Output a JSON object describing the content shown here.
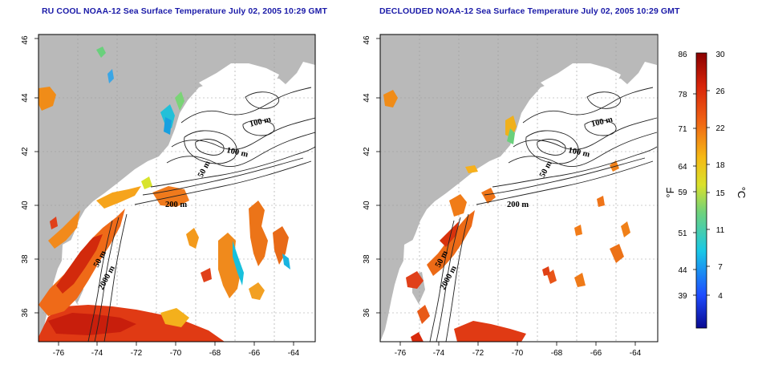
{
  "panels": [
    {
      "title": "RU COOL NOAA-12 Sea Surface Temperature July 02, 2005 10:29 GMT",
      "contour_labels": [
        "100 m",
        "100 m",
        "50 m",
        "200 m",
        "50 m",
        "2000 m"
      ]
    },
    {
      "title": "DECLOUDED NOAA-12 Sea Surface Temperature July 02, 2005 10:29 GMT",
      "contour_labels": [
        "100 m",
        "100 m",
        "50 m",
        "200 m",
        "50 m",
        "2000 m"
      ]
    }
  ],
  "x_ticks": [
    "-76",
    "-74",
    "-72",
    "-70",
    "-68",
    "-66",
    "-64"
  ],
  "y_ticks": [
    "36",
    "38",
    "40",
    "42",
    "44",
    "46"
  ],
  "colorbar": {
    "f_labels": [
      "86",
      "78",
      "71",
      "64",
      "59",
      "51",
      "44",
      "39"
    ],
    "c_labels": [
      "30",
      "26",
      "22",
      "18",
      "15",
      "11",
      "7",
      "4"
    ],
    "f_unit": "°F",
    "c_unit": "°C"
  },
  "colors": {
    "land": "#b9b9b9",
    "title": "#1a1aa8",
    "ocean": "#ffffff",
    "grid": "#9a9a9a"
  }
}
